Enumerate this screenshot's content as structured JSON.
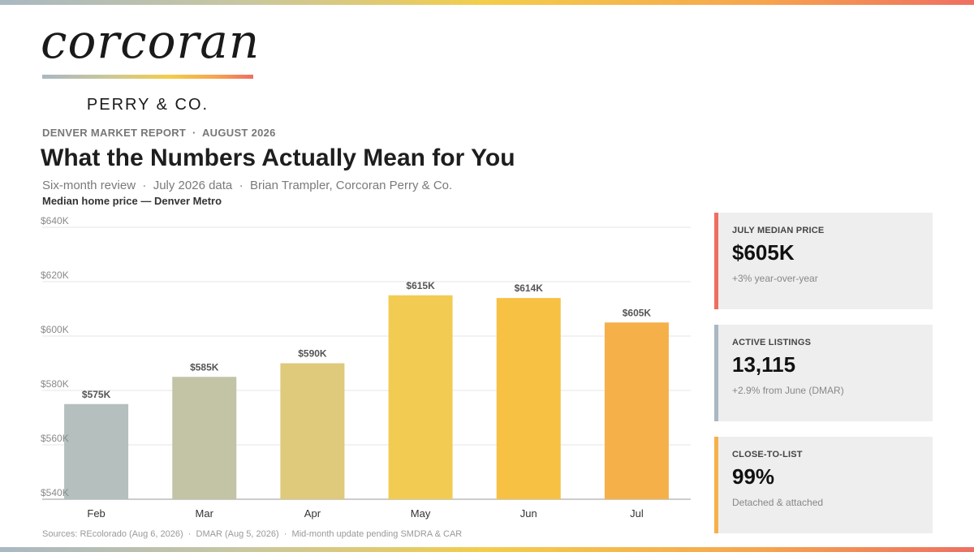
{
  "brand": {
    "wordmark": "corcoran",
    "subbrand": "PERRY & CO."
  },
  "colors": {
    "stripe": [
      "#a9b8c2",
      "#c8c7a0",
      "#f3cd4b",
      "#f6a54e",
      "#ee6f62"
    ],
    "card_accents": [
      "#ee6f62",
      "#a9b8c2",
      "#f6b04a"
    ],
    "bar_colors": [
      "#b5bfbd",
      "#c3c3a6",
      "#dfc97a",
      "#f2cb52",
      "#f7c143",
      "#f6b04a"
    ]
  },
  "header": {
    "eyebrow": "DENVER MARKET REPORT  ·  AUGUST 2026",
    "headline": "What the Numbers Actually Mean for You",
    "subline": "Six-month review  ·  July 2026 data  ·  Brian Trampler, Corcoran Perry & Co."
  },
  "chart_data": {
    "type": "bar",
    "title": "Median home price — Denver Metro",
    "categories": [
      "Feb",
      "Mar",
      "Apr",
      "May",
      "Jun",
      "Jul"
    ],
    "values": [
      575,
      585,
      590,
      615,
      614,
      605
    ],
    "data_labels": [
      "$575K",
      "$585K",
      "$590K",
      "$615K",
      "$614K",
      "$605K"
    ],
    "ylim": [
      540,
      640
    ],
    "yticks": [
      540,
      560,
      580,
      600,
      620,
      640
    ],
    "ytick_labels": [
      "$540K",
      "$560K",
      "$580K",
      "$600K",
      "$620K",
      "$640K"
    ],
    "grid": true,
    "legend": "none"
  },
  "cards": [
    {
      "label": "JULY MEDIAN PRICE",
      "value": "$605K",
      "note": "+3% year-over-year"
    },
    {
      "label": "ACTIVE LISTINGS",
      "value": "13,115",
      "note": "+2.9% from June (DMAR)"
    },
    {
      "label": "CLOSE-TO-LIST",
      "value": "99%",
      "note": "Detached & attached"
    }
  ],
  "footer": {
    "sources": "Sources: REcolorado (Aug 6, 2026)  ·  DMAR (Aug 5, 2026)  ·  Mid-month update pending SMDRA & CAR"
  }
}
